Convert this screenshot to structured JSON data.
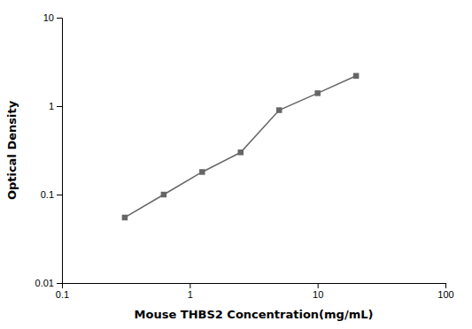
{
  "chart_data": {
    "type": "line",
    "x": [
      0.31,
      0.625,
      1.25,
      2.5,
      5.0,
      10.0,
      20.0
    ],
    "values": [
      0.055,
      0.1,
      0.18,
      0.3,
      0.9,
      1.4,
      2.2
    ],
    "xlabel": "Mouse THBS2 Concentration(mg/mL)",
    "ylabel": "Optical Density",
    "xlim": [
      0.1,
      100
    ],
    "ylim": [
      0.01,
      10
    ],
    "xticks": [
      0.1,
      1,
      10,
      100
    ],
    "yticks": [
      0.01,
      0.1,
      1,
      10
    ],
    "log": true,
    "color": "#666666",
    "marker": "square",
    "grid": false
  }
}
